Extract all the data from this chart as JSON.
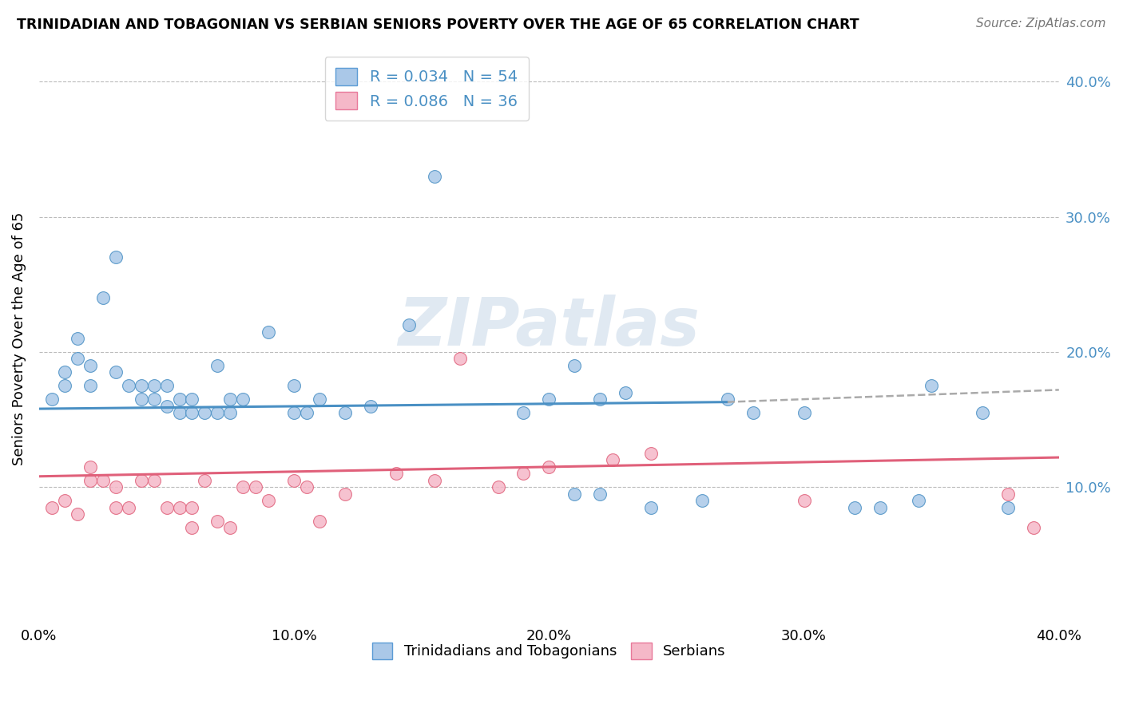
{
  "title": "TRINIDADIAN AND TOBAGONIAN VS SERBIAN SENIORS POVERTY OVER THE AGE OF 65 CORRELATION CHART",
  "source": "Source: ZipAtlas.com",
  "ylabel": "Seniors Poverty Over the Age of 65",
  "xlim": [
    0.0,
    0.4
  ],
  "ylim": [
    0.0,
    0.42
  ],
  "xtick_labels": [
    "0.0%",
    "10.0%",
    "20.0%",
    "30.0%",
    "40.0%"
  ],
  "xtick_vals": [
    0.0,
    0.1,
    0.2,
    0.3,
    0.4
  ],
  "ytick_vals": [
    0.1,
    0.2,
    0.3,
    0.4
  ],
  "ytick_labels": [
    "10.0%",
    "20.0%",
    "30.0%",
    "40.0%"
  ],
  "legend_entries": [
    {
      "label": "R = 0.034   N = 54",
      "facecolor": "#aac8e8",
      "edgecolor": "#5b9bd5"
    },
    {
      "label": "R = 0.086   N = 36",
      "facecolor": "#f5b8c8",
      "edgecolor": "#e8799a"
    }
  ],
  "bottom_legend": [
    "Trinidadians and Tobagonians",
    "Serbians"
  ],
  "blue_color": "#4a90c4",
  "pink_color": "#e0607a",
  "blue_scatter_fc": "#aac8e8",
  "pink_scatter_fc": "#f5b8c8",
  "watermark_text": "ZIPatlas",
  "blue_line": {
    "x0": 0.0,
    "y0": 0.158,
    "x1": 0.27,
    "y1": 0.163,
    "x1d": 0.4,
    "y1d": 0.172
  },
  "pink_line": {
    "x0": 0.0,
    "y0": 0.108,
    "x1": 0.4,
    "y1": 0.122
  },
  "blue_pts_x": [
    0.005,
    0.01,
    0.01,
    0.015,
    0.015,
    0.02,
    0.02,
    0.025,
    0.03,
    0.03,
    0.035,
    0.04,
    0.04,
    0.045,
    0.045,
    0.05,
    0.05,
    0.055,
    0.055,
    0.06,
    0.06,
    0.065,
    0.07,
    0.07,
    0.075,
    0.075,
    0.08,
    0.09,
    0.1,
    0.1,
    0.105,
    0.11,
    0.12,
    0.13,
    0.145,
    0.155,
    0.19,
    0.2,
    0.21,
    0.21,
    0.22,
    0.22,
    0.23,
    0.24,
    0.26,
    0.27,
    0.28,
    0.3,
    0.32,
    0.33,
    0.345,
    0.35,
    0.37,
    0.38
  ],
  "blue_pts_y": [
    0.165,
    0.175,
    0.185,
    0.195,
    0.21,
    0.175,
    0.19,
    0.24,
    0.185,
    0.27,
    0.175,
    0.165,
    0.175,
    0.165,
    0.175,
    0.16,
    0.175,
    0.155,
    0.165,
    0.155,
    0.165,
    0.155,
    0.155,
    0.19,
    0.155,
    0.165,
    0.165,
    0.215,
    0.155,
    0.175,
    0.155,
    0.165,
    0.155,
    0.16,
    0.22,
    0.33,
    0.155,
    0.165,
    0.095,
    0.19,
    0.095,
    0.165,
    0.17,
    0.085,
    0.09,
    0.165,
    0.155,
    0.155,
    0.085,
    0.085,
    0.09,
    0.175,
    0.155,
    0.085
  ],
  "pink_pts_x": [
    0.005,
    0.01,
    0.015,
    0.02,
    0.02,
    0.025,
    0.03,
    0.03,
    0.035,
    0.04,
    0.045,
    0.05,
    0.055,
    0.06,
    0.06,
    0.065,
    0.07,
    0.075,
    0.08,
    0.085,
    0.09,
    0.1,
    0.105,
    0.11,
    0.12,
    0.14,
    0.155,
    0.165,
    0.18,
    0.19,
    0.2,
    0.225,
    0.24,
    0.3,
    0.38,
    0.39
  ],
  "pink_pts_y": [
    0.085,
    0.09,
    0.08,
    0.105,
    0.115,
    0.105,
    0.085,
    0.1,
    0.085,
    0.105,
    0.105,
    0.085,
    0.085,
    0.07,
    0.085,
    0.105,
    0.075,
    0.07,
    0.1,
    0.1,
    0.09,
    0.105,
    0.1,
    0.075,
    0.095,
    0.11,
    0.105,
    0.195,
    0.1,
    0.11,
    0.115,
    0.12,
    0.125,
    0.09,
    0.095,
    0.07
  ]
}
